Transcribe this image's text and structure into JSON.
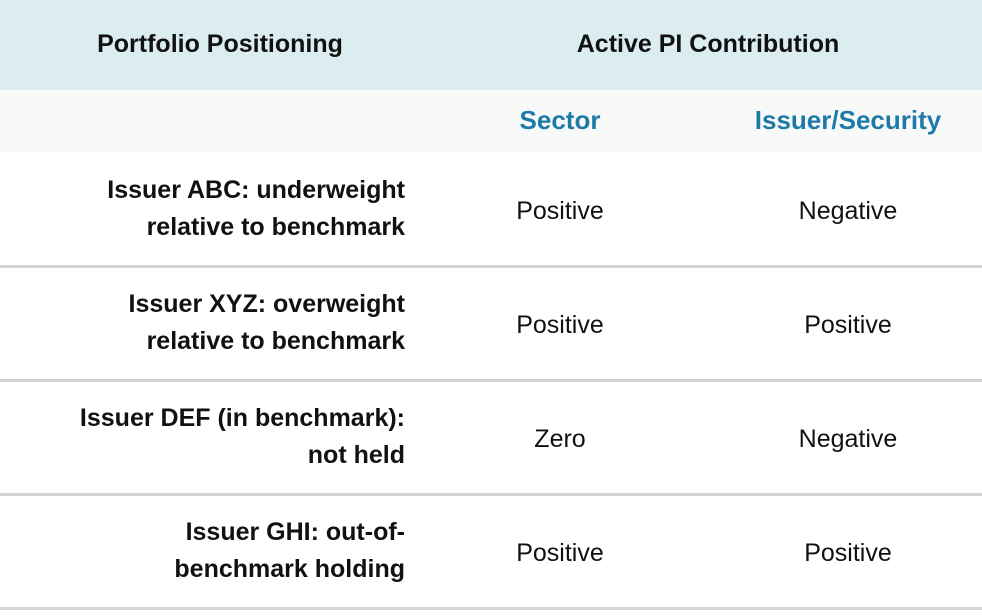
{
  "header": {
    "columns": [
      "Portfolio Positioning",
      "Active PI Contribution"
    ]
  },
  "subheader": [
    "Sector",
    "Issuer/Security"
  ],
  "rows": [
    {
      "positioning": [
        "Issuer ABC: underweight",
        "relative to benchmark"
      ],
      "sector": "Positive",
      "issuer_security": "Negative"
    },
    {
      "positioning": [
        "Issuer XYZ: overweight",
        "relative to benchmark"
      ],
      "sector": "Positive",
      "issuer_security": "Positive"
    },
    {
      "positioning": [
        "Issuer DEF (in benchmark):",
        "not held"
      ],
      "sector": "Zero",
      "issuer_security": "Negative"
    },
    {
      "positioning": [
        "Issuer GHI: out-of-",
        "benchmark holding"
      ],
      "sector": "Positive",
      "issuer_security": "Positive"
    }
  ]
}
